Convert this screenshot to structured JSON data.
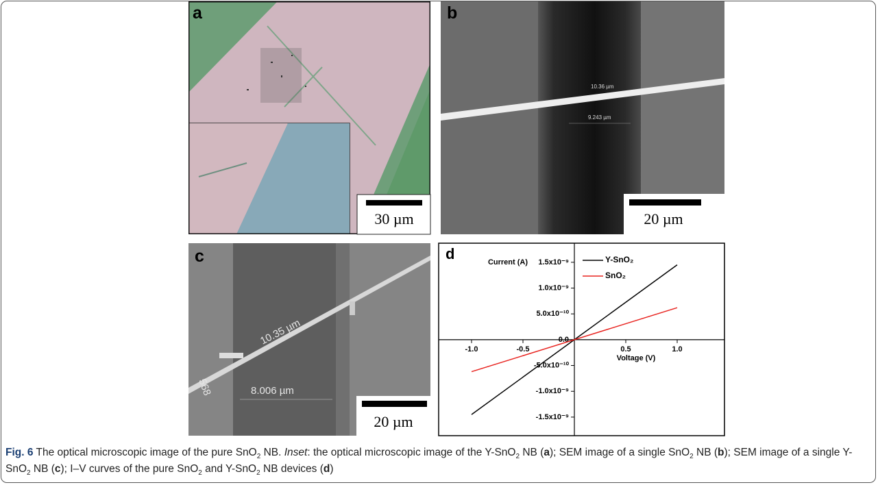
{
  "panels": [
    {
      "label": "a",
      "scale_bar": "30 µm"
    },
    {
      "label": "b",
      "scale_bar": "20 µm",
      "annotations": [
        "10.36 µm",
        "9.243 µm"
      ]
    },
    {
      "label": "c",
      "scale_bar": "20 µm",
      "annotations": [
        "10.35 µm",
        "8.006 µm",
        "568"
      ]
    },
    {
      "label": "d"
    }
  ],
  "chart_data": {
    "type": "line",
    "x_label": "Voltage (V)",
    "y_label": "Current (A)",
    "x": [
      -1,
      0,
      1
    ],
    "series": [
      {
        "name": "Y-SnO₂",
        "color": "#000000",
        "values": [
          -1.45e-09,
          0,
          1.45e-09
        ]
      },
      {
        "name": "SnO₂",
        "color": "#e8231f",
        "values": [
          -6.2e-10,
          0,
          6.2e-10
        ]
      }
    ],
    "xlim": [
      -1.32,
      1.46
    ],
    "ylim": [
      -1.86e-09,
      1.87e-09
    ],
    "xticks": [
      {
        "value": -1,
        "label": "-1.0"
      },
      {
        "value": -0.5,
        "label": "-0.5"
      },
      0.5,
      {
        "value": 1,
        "label": "1.0"
      }
    ],
    "yticks": [
      {
        "value": -1.5e-09,
        "label": "-1.5x10⁻⁹"
      },
      {
        "value": -1e-09,
        "label": "-1.0x10⁻⁹"
      },
      {
        "value": -5e-10,
        "label": "-5.0x10⁻¹⁰"
      },
      {
        "value": 0,
        "label": "0.0"
      },
      {
        "value": 5e-10,
        "label": "5.0x10⁻¹⁰"
      },
      {
        "value": 1e-09,
        "label": "1.0x10⁻⁹"
      },
      {
        "value": 1.5e-09,
        "label": "1.5x10⁻⁹"
      }
    ]
  },
  "caption": [
    "Fig. 6",
    " The optical microscopic image of the pure SnO",
    "2",
    " NB. ",
    "Inset",
    ": the optical microscopic image of the Y-SnO",
    "2",
    " NB (",
    "a",
    "); SEM image of a single SnO",
    "2",
    " NB (",
    "b",
    "); SEM image of a single Y-SnO",
    "2",
    " NB (",
    "c",
    "); I–V curves of the pure SnO",
    "2",
    " and Y-SnO",
    "2",
    " NB devices (",
    "d",
    ")"
  ]
}
